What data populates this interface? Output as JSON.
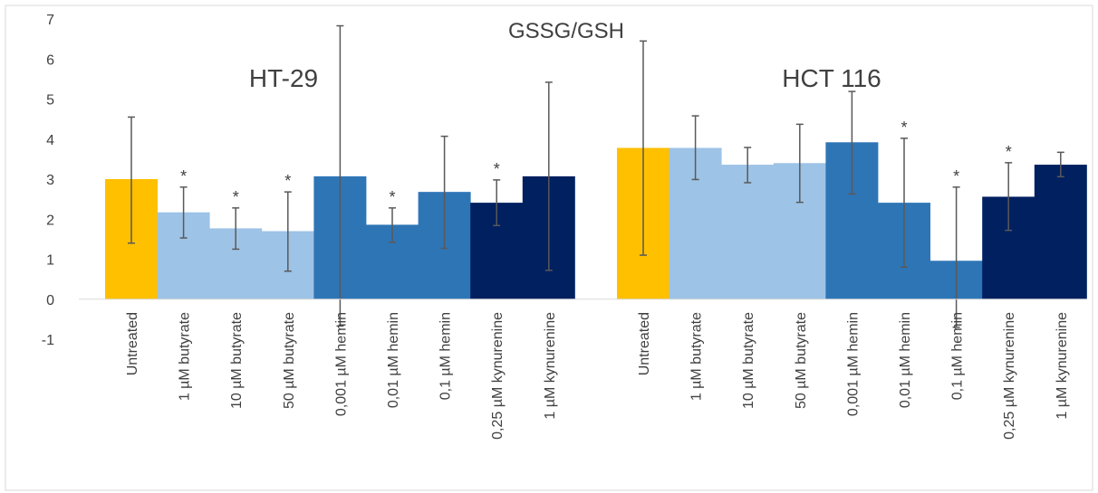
{
  "chart_data": {
    "type": "bar",
    "title": "GSSG/GSH",
    "ylim": [
      -1,
      7
    ],
    "yticks": [
      -1,
      0,
      1,
      2,
      3,
      4,
      5,
      6,
      7
    ],
    "grid": false,
    "legend": "none",
    "colors": {
      "untreated": "#FFC000",
      "butyrate": "#9DC3E6",
      "hemin": "#2E75B6",
      "kynurenine": "#002060",
      "errorbar": "#595959",
      "axis": "#D9D9D9",
      "text": "#404040"
    },
    "groups": [
      {
        "label": "HT-29",
        "bars": [
          {
            "category": "Untreated",
            "value": 3.0,
            "err_low": 1.4,
            "err_high": 4.55,
            "color_key": "untreated",
            "sig": ""
          },
          {
            "category": "1 µM butyrate",
            "value": 2.17,
            "err_low": 1.53,
            "err_high": 2.8,
            "color_key": "butyrate",
            "sig": "*"
          },
          {
            "category": "10 µM butyrate",
            "value": 1.77,
            "err_low": 1.25,
            "err_high": 2.28,
            "color_key": "butyrate",
            "sig": "*"
          },
          {
            "category": "50 µM butyrate",
            "value": 1.7,
            "err_low": 0.7,
            "err_high": 2.68,
            "color_key": "butyrate",
            "sig": "*"
          },
          {
            "category": "0,001 µM hemin",
            "value": 3.07,
            "err_low": -0.67,
            "err_high": 6.83,
            "color_key": "hemin",
            "sig": ""
          },
          {
            "category": "0,01 µM hemin",
            "value": 1.86,
            "err_low": 1.42,
            "err_high": 2.28,
            "color_key": "hemin",
            "sig": "*"
          },
          {
            "category": "0,1 µM hemin",
            "value": 2.68,
            "err_low": 1.27,
            "err_high": 4.07,
            "color_key": "hemin",
            "sig": ""
          },
          {
            "category": "0,25 µM kynurenine",
            "value": 2.41,
            "err_low": 1.84,
            "err_high": 2.98,
            "color_key": "kynurenine",
            "sig": "*"
          },
          {
            "category": "1 µM kynurenine",
            "value": 3.07,
            "err_low": 0.72,
            "err_high": 5.42,
            "color_key": "kynurenine",
            "sig": ""
          }
        ]
      },
      {
        "label": "HCT 116",
        "bars": [
          {
            "category": "Untreated",
            "value": 3.78,
            "err_low": 1.1,
            "err_high": 6.45,
            "color_key": "untreated",
            "sig": ""
          },
          {
            "category": "1 µM butyrate",
            "value": 3.78,
            "err_low": 2.99,
            "err_high": 4.58,
            "color_key": "butyrate",
            "sig": ""
          },
          {
            "category": "10 µM butyrate",
            "value": 3.36,
            "err_low": 2.91,
            "err_high": 3.79,
            "color_key": "butyrate",
            "sig": ""
          },
          {
            "category": "50 µM butyrate",
            "value": 3.4,
            "err_low": 2.42,
            "err_high": 4.37,
            "color_key": "butyrate",
            "sig": ""
          },
          {
            "category": "0,001 µM hemin",
            "value": 3.92,
            "err_low": 2.63,
            "err_high": 5.19,
            "color_key": "hemin",
            "sig": ""
          },
          {
            "category": "0,01 µM hemin",
            "value": 2.41,
            "err_low": 0.8,
            "err_high": 4.02,
            "color_key": "hemin",
            "sig": "*"
          },
          {
            "category": "0,1 µM hemin",
            "value": 0.96,
            "err_low": -0.7,
            "err_high": 2.8,
            "color_key": "hemin",
            "sig": "*"
          },
          {
            "category": "0,25 µM kynurenine",
            "value": 2.56,
            "err_low": 1.72,
            "err_high": 3.41,
            "color_key": "kynurenine",
            "sig": "*"
          },
          {
            "category": "1 µM kynurenine",
            "value": 3.36,
            "err_low": 3.06,
            "err_high": 3.67,
            "color_key": "kynurenine",
            "sig": ""
          }
        ]
      }
    ]
  }
}
